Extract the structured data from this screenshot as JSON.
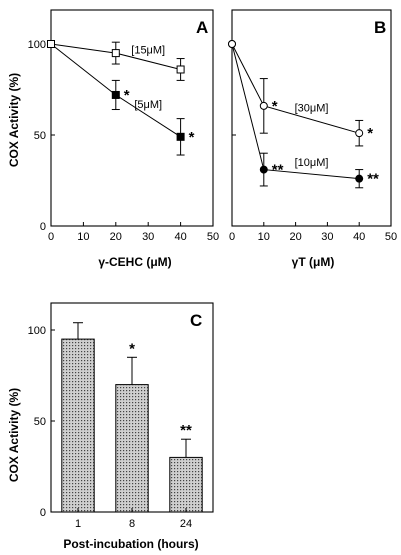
{
  "chart_data": [
    {
      "panel": "A",
      "type": "line",
      "xlabel": "γ-CEHC (μM)",
      "ylabel": "COX Activity (%)",
      "xlim": [
        0,
        50
      ],
      "ylim": [
        0,
        115
      ],
      "xticks": [
        0,
        10,
        20,
        30,
        40,
        50
      ],
      "yticks": [
        0,
        50,
        100
      ],
      "series": [
        {
          "name": "[15μM]",
          "marker": "square-open",
          "x": [
            0,
            20,
            40
          ],
          "y": [
            100,
            95,
            86
          ],
          "err": [
            0,
            6,
            6
          ],
          "stars": [
            "",
            "",
            ""
          ]
        },
        {
          "name": "[5μM]",
          "marker": "square-filled",
          "x": [
            0,
            20,
            40
          ],
          "y": [
            100,
            72,
            49
          ],
          "err": [
            0,
            8,
            10
          ],
          "stars": [
            "",
            "*",
            "*"
          ]
        }
      ]
    },
    {
      "panel": "B",
      "type": "line",
      "xlabel": "γT (μM)",
      "ylabel": "",
      "xlim": [
        0,
        50
      ],
      "ylim": [
        0,
        115
      ],
      "xticks": [
        0,
        10,
        20,
        30,
        40,
        50
      ],
      "yticks": [],
      "series": [
        {
          "name": "[30μM]",
          "marker": "circle-open",
          "x": [
            0,
            10,
            40
          ],
          "y": [
            100,
            66,
            51
          ],
          "err": [
            0,
            15,
            7
          ],
          "stars": [
            "",
            "*",
            "*"
          ]
        },
        {
          "name": "[10μM]",
          "marker": "circle-filled",
          "x": [
            0,
            10,
            40
          ],
          "y": [
            100,
            31,
            26
          ],
          "err": [
            0,
            9,
            5
          ],
          "stars": [
            "",
            "**",
            "**"
          ]
        }
      ]
    },
    {
      "panel": "C",
      "type": "bar",
      "xlabel": "Post-incubation (hours)",
      "ylabel": "COX Activity (%)",
      "categories": [
        "1",
        "8",
        "24"
      ],
      "values": [
        95,
        70,
        30
      ],
      "errors": [
        9,
        15,
        10
      ],
      "stars": [
        "",
        "*",
        "**"
      ],
      "ylim": [
        0,
        115
      ],
      "yticks": [
        0,
        50,
        100
      ]
    }
  ]
}
